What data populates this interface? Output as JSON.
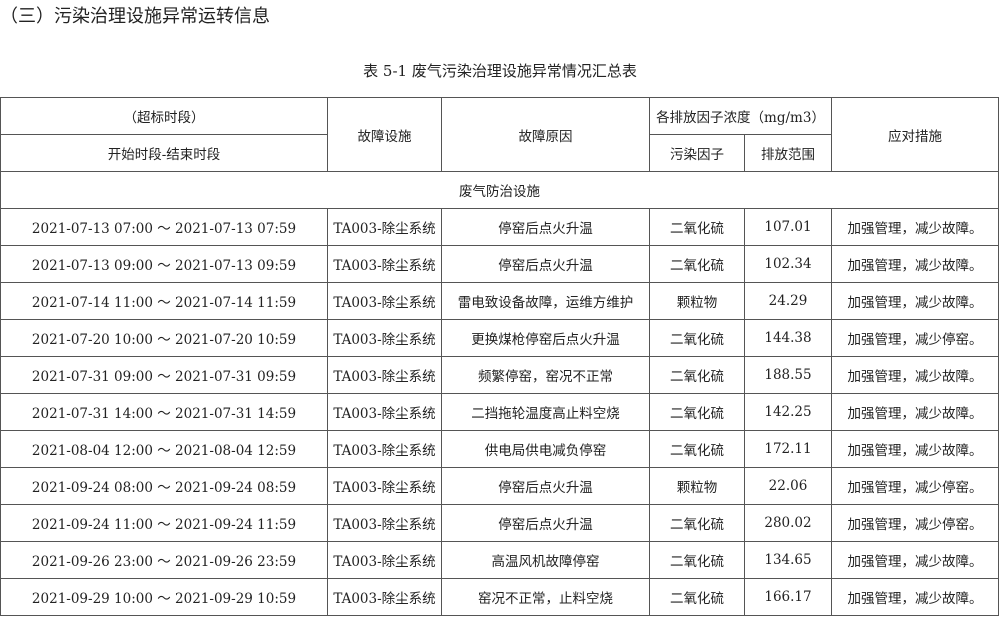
{
  "section_title": "（三）污染治理设施异常运转信息",
  "table_caption": "表 5-1  废气污染治理设施异常情况汇总表",
  "headers": {
    "period_group": "（超标时段）",
    "period": "开始时段-结束时段",
    "facility": "故障设施",
    "reason": "故障原因",
    "concentration_group": "各排放因子浓度（mg/m3）",
    "pollutant": "污染因子",
    "range": "排放范围",
    "measures": "应对措施"
  },
  "section_row": "废气防治设施",
  "rows": [
    {
      "period": "2021-07-13 07:00 ～ 2021-07-13 07:59",
      "facility": "TA003-除尘系统",
      "reason": "停窑后点火升温",
      "pollutant": "二氧化硫",
      "range": "107.01",
      "measures": "加强管理，减少故障。"
    },
    {
      "period": "2021-07-13 09:00 ～ 2021-07-13 09:59",
      "facility": "TA003-除尘系统",
      "reason": "停窑后点火升温",
      "pollutant": "二氧化硫",
      "range": "102.34",
      "measures": "加强管理，减少故障。"
    },
    {
      "period": "2021-07-14 11:00 ～ 2021-07-14 11:59",
      "facility": "TA003-除尘系统",
      "reason": "雷电致设备故障，运维方维护",
      "pollutant": "颗粒物",
      "range": "24.29",
      "measures": "加强管理，减少故障。"
    },
    {
      "period": "2021-07-20 10:00 ～ 2021-07-20 10:59",
      "facility": "TA003-除尘系统",
      "reason": "更换煤枪停窑后点火升温",
      "pollutant": "二氧化硫",
      "range": "144.38",
      "measures": "加强管理，减少停窑。"
    },
    {
      "period": "2021-07-31 09:00 ～ 2021-07-31 09:59",
      "facility": "TA003-除尘系统",
      "reason": "频繁停窑，窑况不正常",
      "pollutant": "二氧化硫",
      "range": "188.55",
      "measures": "加强管理，减少故障。"
    },
    {
      "period": "2021-07-31 14:00 ～ 2021-07-31 14:59",
      "facility": "TA003-除尘系统",
      "reason": "二挡拖轮温度高止料空烧",
      "pollutant": "二氧化硫",
      "range": "142.25",
      "measures": "加强管理，减少故障。"
    },
    {
      "period": "2021-08-04 12:00 ～ 2021-08-04 12:59",
      "facility": "TA003-除尘系统",
      "reason": "供电局供电减负停窑",
      "pollutant": "二氧化硫",
      "range": "172.11",
      "measures": "加强管理，减少故障。"
    },
    {
      "period": "2021-09-24 08:00 ～ 2021-09-24 08:59",
      "facility": "TA003-除尘系统",
      "reason": "停窑后点火升温",
      "pollutant": "颗粒物",
      "range": "22.06",
      "measures": "加强管理，减少停窑。"
    },
    {
      "period": "2021-09-24 11:00 ～ 2021-09-24 11:59",
      "facility": "TA003-除尘系统",
      "reason": "停窑后点火升温",
      "pollutant": "二氧化硫",
      "range": "280.02",
      "measures": "加强管理，减少停窑。"
    },
    {
      "period": "2021-09-26 23:00 ～ 2021-09-26 23:59",
      "facility": "TA003-除尘系统",
      "reason": "高温风机故障停窑",
      "pollutant": "二氧化硫",
      "range": "134.65",
      "measures": "加强管理，减少故障。"
    },
    {
      "period": "2021-09-29 10:00 ～ 2021-09-29 10:59",
      "facility": "TA003-除尘系统",
      "reason": "窑况不正常，止料空烧",
      "pollutant": "二氧化硫",
      "range": "166.17",
      "measures": "加强管理，减少故障。"
    }
  ]
}
